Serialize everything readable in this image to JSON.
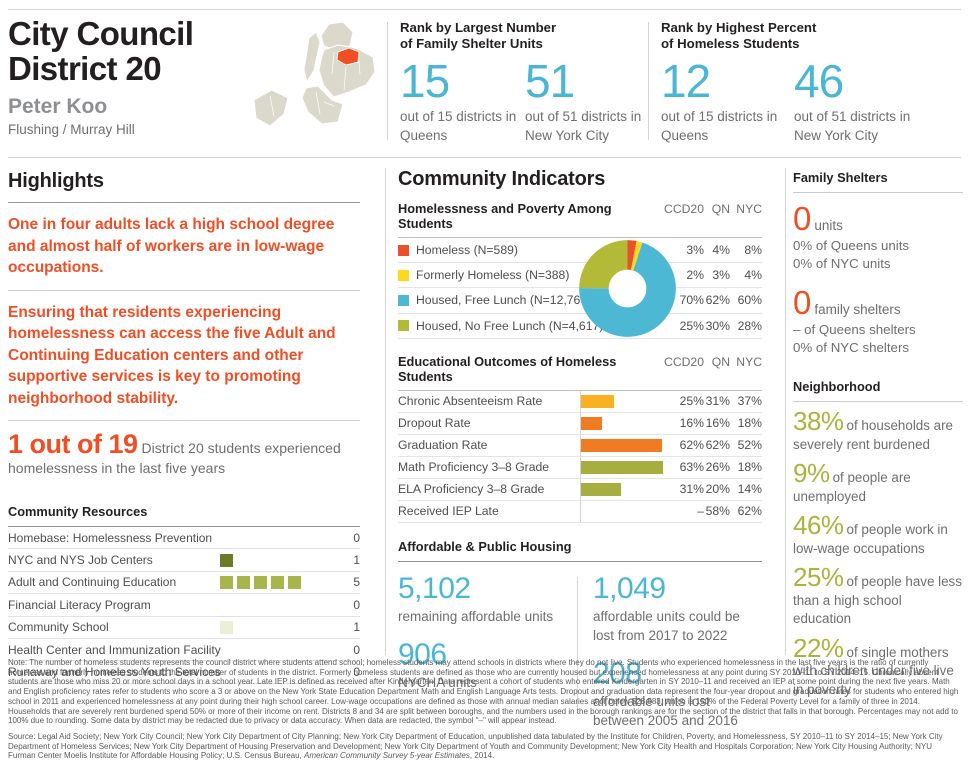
{
  "header": {
    "title_line1": "City Council",
    "title_line2": "District 20",
    "member": "Peter Koo",
    "neighborhoods": "Flushing / Murray Hill",
    "rank_groups": [
      {
        "title_line1": "Rank by Largest Number",
        "title_line2": "of Family Shelter Units",
        "stats": [
          {
            "value": "15",
            "caption": "out of 15 districts in Queens"
          },
          {
            "value": "51",
            "caption": "out of 51 districts in New York City"
          }
        ]
      },
      {
        "title_line1": "Rank by Highest Percent",
        "title_line2": "of Homeless Students",
        "stats": [
          {
            "value": "12",
            "caption": "out of 15 districts in Queens"
          },
          {
            "value": "46",
            "caption": "out of 51 districts in New York City"
          }
        ]
      }
    ]
  },
  "highlights": {
    "heading": "Highlights",
    "para1": "One in four adults lack a high school degree and almost half of workers are in low-wage occupations.",
    "para2": "Ensuring that residents experiencing homelessness can access the five Adult and Continuing Education centers and other supportive services is key to promoting neighborhood stability.",
    "stat_value": "1 out of 19",
    "stat_caption": "District 20 students experienced homelessness in the last five years"
  },
  "community_resources": {
    "heading": "Community Resources",
    "rows": [
      {
        "label": "Homebase: Homelessness Prevention",
        "count": 0,
        "color": "",
        "value": "0"
      },
      {
        "label": "NYC and NYS Job Centers",
        "count": 1,
        "color": "#6d7b28",
        "value": "1"
      },
      {
        "label": "Adult and Continuing Education",
        "count": 5,
        "color": "#a9b44c",
        "value": "5"
      },
      {
        "label": "Financial Literacy Program",
        "count": 0,
        "color": "",
        "value": "0"
      },
      {
        "label": "Community School",
        "count": 1,
        "color": "#ecefd3",
        "value": "1"
      },
      {
        "label": "Health Center and Immunization Facility",
        "count": 0,
        "color": "",
        "value": "0"
      },
      {
        "label": "Runaway and Homeless Youth Services",
        "count": 0,
        "color": "",
        "value": "0"
      }
    ]
  },
  "community_indicators": {
    "heading": "Community Indicators",
    "poverty_table": {
      "heading": "Homelessness and Poverty Among Students",
      "columns": [
        "CCD20",
        "QN",
        "NYC"
      ],
      "rows": [
        {
          "label": "Homeless (N=589)",
          "color": "#e85129",
          "ccd20": "3%",
          "qn": "4%",
          "nyc": "8%"
        },
        {
          "label": "Formerly Homeless (N=388)",
          "color": "#fdd81f",
          "ccd20": "2%",
          "qn": "3%",
          "nyc": "4%"
        },
        {
          "label": "Housed, Free Lunch (N=12,766)",
          "color": "#4cb8d4",
          "ccd20": "70%",
          "qn": "62%",
          "nyc": "60%"
        },
        {
          "label": "Housed, No Free Lunch (N=4,617)",
          "color": "#b2ba37",
          "ccd20": "25%",
          "qn": "30%",
          "nyc": "28%"
        }
      ]
    },
    "outcomes_table": {
      "heading": "Educational Outcomes of Homeless Students",
      "columns": [
        "CCD20",
        "QN",
        "NYC"
      ],
      "rows": [
        {
          "label": "Chronic Absenteeism Rate",
          "bar": 25,
          "color": "#f9b122",
          "ccd20": "25%",
          "qn": "31%",
          "nyc": "37%"
        },
        {
          "label": "Dropout Rate",
          "bar": 16,
          "color": "#ef7c23",
          "ccd20": "16%",
          "qn": "16%",
          "nyc": "18%"
        },
        {
          "label": "Graduation Rate",
          "bar": 62,
          "color": "#ef7c23",
          "ccd20": "62%",
          "qn": "62%",
          "nyc": "52%"
        },
        {
          "label": "Math Proficiency 3–8 Grade",
          "bar": 63,
          "color": "#a5ae3f",
          "ccd20": "63%",
          "qn": "26%",
          "nyc": "18%"
        },
        {
          "label": "ELA Proficiency 3–8 Grade",
          "bar": 31,
          "color": "#a5ae3f",
          "ccd20": "31%",
          "qn": "20%",
          "nyc": "14%"
        },
        {
          "label": "Received IEP Late",
          "bar": 0,
          "color": "",
          "ccd20": "–",
          "qn": "58%",
          "nyc": "62%"
        }
      ]
    },
    "housing": {
      "heading": "Affordable & Public Housing",
      "stats": [
        {
          "value": "5,102",
          "caption": "remaining affordable units"
        },
        {
          "value": "1,049",
          "caption": "affordable units could be lost from 2017 to 2022"
        },
        {
          "value": "906",
          "caption": "NYCHA units"
        },
        {
          "value": "208",
          "caption": "affordable units lost between 2005 and 2016"
        }
      ]
    }
  },
  "family_shelters": {
    "heading": "Family Shelters",
    "groups": [
      {
        "value": "0",
        "label": "units",
        "line1": "0% of Queens units",
        "line2": "0% of NYC units"
      },
      {
        "value": "0",
        "label": "family shelters",
        "line1": "– of Queens shelters",
        "line2": "0% of NYC shelters"
      }
    ]
  },
  "neighborhood": {
    "heading": "Neighborhood",
    "stats": [
      {
        "value": "38%",
        "text": "of households are severely rent burdened"
      },
      {
        "value": "9%",
        "text": "of people are unemployed"
      },
      {
        "value": "46%",
        "text": "of people work in low-wage occupations"
      },
      {
        "value": "25%",
        "text": "of people have less than a high school education"
      },
      {
        "value": "22%",
        "text": "of single mothers with children under five live in poverty"
      }
    ]
  },
  "footer": {
    "note": "Note: The number of homeless students represents the council district where students attend school; homeless students may attend schools in districts where they do not live. Students who experienced homelessness in the last five years is the ratio of currently homeless and formerly homeless students to the total number of students in the district. Formerly homeless students are defined as those who are currently housed but experienced homelessness at any point during SY 2010–11 to SY 2014–15. Chronically absent students are those who miss 20 or more school days in a school year. Late IEP is defined as received after Kindergarten. Data represent a cohort of students who entered Kindergarten in SY 2010–11 and received an IEP at some point during the next five years. Math and English proficiency rates refer to students who score a 3 or above on the New York State Education Department Math and English Language Arts tests. Dropout and graduation data represent the four-year dropout and graduation rates for students who entered high school in 2011 and experienced homelessness at any point during their high school career. Low-wage occupations are defined as those with annual median salaries at or below $28,583, which is 150% of the Federal Poverty Level for a family of three in 2014. Households that are severely rent burdened spend 50% or more of their income on rent. Districts 8 and 34 are split between boroughs, and the numbers used in the borough rankings are for the section of the district that falls in that borough. Percentages may not add to 100% due to rounding. Some data by district may be redacted due to privacy or data accuracy. When data are redacted, the symbol \"–\" will appear instead.",
    "source_prefix": "Source: Legal Aid Society; New York City Council; New York City Department of City Planning; New York City Department of Education, unpublished data tabulated by the Institute for Children, Poverty, and Homelessness, SY 2010–11 to SY 2014–15; New York City Department of Homeless Services; New York City Department of Housing Preservation and Development; New York City Department of Youth and Community Development; New York City Health and Hospitals Corporation; New York City Housing Authority; NYU Furman Center Moelis Institute for Affordable Housing Policy; U.S. Census Bureau, ",
    "source_italic": "American Community Survey 5-year Estimates",
    "source_suffix": ", 2014."
  },
  "colors": {
    "accent_cyan": "#4bb6d3",
    "accent_orange": "#f04e25",
    "accent_olive": "#a9b43e",
    "map_land": "#dbd9cc",
    "map_district": "#f04e25"
  },
  "chart_data": [
    {
      "type": "pie",
      "title": "Homelessness and Poverty Among Students (CCD20)",
      "labels": [
        "Homeless",
        "Formerly Homeless",
        "Housed, Free Lunch",
        "Housed, No Free Lunch"
      ],
      "values": [
        3,
        2,
        70,
        25
      ],
      "colors": [
        "#e85129",
        "#fdd81f",
        "#4cb8d4",
        "#b2ba37"
      ],
      "donut": true,
      "legend_position": "left"
    },
    {
      "type": "bar",
      "title": "Educational Outcomes of Homeless Students (CCD20)",
      "categories": [
        "Chronic Absenteeism Rate",
        "Dropout Rate",
        "Graduation Rate",
        "Math Proficiency 3–8 Grade",
        "ELA Proficiency 3–8 Grade",
        "Received IEP Late"
      ],
      "values": [
        25,
        16,
        62,
        63,
        31,
        null
      ],
      "colors": [
        "#f9b122",
        "#ef7c23",
        "#ef7c23",
        "#a5ae3f",
        "#a5ae3f",
        ""
      ],
      "orientation": "horizontal",
      "xlim": [
        0,
        100
      ]
    }
  ]
}
